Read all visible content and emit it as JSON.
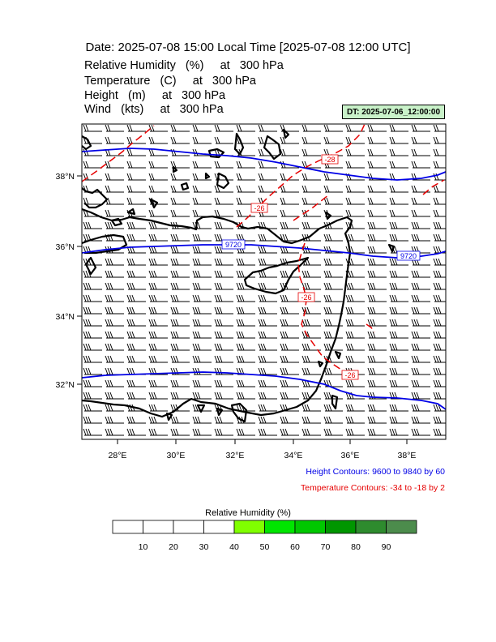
{
  "header": {
    "title": "Date: 2025-07-08  15:00 Local Time [2025-07-08  12:00 UTC]",
    "fields": [
      "Relative Humidity   (%)     at   300 hPa",
      "Temperature   (C)     at   300 hPa",
      "Height   (m)     at   300 hPa",
      "Wind   (kts)     at   300 hPa"
    ],
    "dt_label": "DT: 2025-07-06_12:00:00"
  },
  "map": {
    "lon_ticks": [
      "28°E",
      "30°E",
      "32°E",
      "34°E",
      "36°E",
      "38°E"
    ],
    "lat_ticks": [
      "38°N",
      "36°N",
      "34°N",
      "32°N"
    ],
    "height_labels": [
      "9720",
      "9720"
    ],
    "temp_labels": [
      "-28",
      "-26",
      "-26",
      "-26"
    ],
    "height_color": "#0000e6",
    "temp_color": "#e60000",
    "barb_color": "#000000"
  },
  "legend": {
    "height_info": "Height Contours: 9600 to 9840 by 60",
    "temp_info": "Temperature Contours: -34 to -18 by 2"
  },
  "colorbar": {
    "title": "Relative Humidity  (%)",
    "labels": [
      "10",
      "20",
      "30",
      "40",
      "50",
      "60",
      "70",
      "80",
      "90"
    ],
    "colors": [
      "#ffffff",
      "#ffffff",
      "#ffffff",
      "#ffffff",
      "#80ff00",
      "#00e600",
      "#00c800",
      "#009600",
      "#2e8b2e",
      "#4c8c4c"
    ]
  }
}
